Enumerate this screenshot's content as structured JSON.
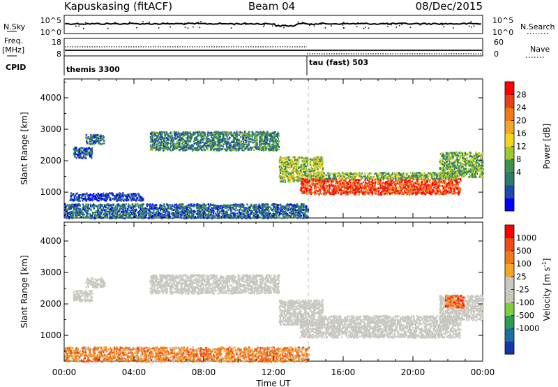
{
  "header": {
    "station": "Kapuskasing (fitACF)",
    "beam": "Beam 04",
    "date": "08/Dec/2015"
  },
  "noise_panel": {
    "left_label": "N.Sky",
    "right_label": "N.Search",
    "left_ticks": [
      "10^5",
      "10^0"
    ],
    "right_ticks": [
      "10^5",
      "10^0"
    ]
  },
  "freq_panel": {
    "left_label_1": "Freq.",
    "left_label_2": "[MHz]",
    "right_label": "Nave",
    "left_ticks": [
      "18",
      "8"
    ],
    "right_ticks": [
      "60",
      "0"
    ],
    "cpid_label": "CPID",
    "cpid_1": "themis 3300",
    "cpid_2": "tau (fast) 503"
  },
  "chart_data": [
    {
      "type": "heatmap",
      "title": "",
      "xlabel": "Time UT",
      "ylabel": "Slant Range [km]",
      "x_ticks": [
        "00:00",
        "04:00",
        "08:00",
        "12:00",
        "16:00",
        "20:00",
        "00:00"
      ],
      "xlim_hours": [
        0,
        24
      ],
      "ylim_km": [
        180,
        4600
      ],
      "y_ticks": [
        1000,
        2000,
        3000,
        4000
      ],
      "colorbar_label": "Power [dB]",
      "colorbar_ticks": [
        "28",
        "24",
        "20",
        "16",
        "12",
        "8",
        "4"
      ],
      "colorbar_colors": [
        "#0000ff",
        "#1e4aa8",
        "#2d7a6e",
        "#3f8f4e",
        "#9ec92a",
        "#f5d51c",
        "#f5a623",
        "#f07a1a",
        "#e8401a",
        "#ff0000"
      ],
      "cpid_change_hours": 14,
      "regions": [
        {
          "t": [
            4.9,
            12.3
          ],
          "r": [
            2350,
            2950
          ],
          "level": 0.28
        },
        {
          "t": [
            0.5,
            1.6
          ],
          "r": [
            2100,
            2450
          ],
          "level": 0.2
        },
        {
          "t": [
            1.2,
            2.3
          ],
          "r": [
            2550,
            2850
          ],
          "level": 0.25
        },
        {
          "t": [
            0.0,
            14.0
          ],
          "r": [
            190,
            650
          ],
          "level": 0.22
        },
        {
          "t": [
            0.3,
            4.5
          ],
          "r": [
            750,
            1000
          ],
          "level": 0.12
        },
        {
          "t": [
            12.3,
            14.8
          ],
          "r": [
            1350,
            2150
          ],
          "level": 0.45
        },
        {
          "t": [
            13.5,
            22.7
          ],
          "r": [
            950,
            1450
          ],
          "level": 0.85
        },
        {
          "t": [
            14.5,
            22.5
          ],
          "r": [
            1450,
            1650
          ],
          "level": 0.4
        },
        {
          "t": [
            21.5,
            24.0
          ],
          "r": [
            1500,
            2300
          ],
          "level": 0.38
        }
      ]
    },
    {
      "type": "heatmap",
      "title": "",
      "xlabel": "Time UT",
      "ylabel": "Slant Range [km]",
      "x_ticks": [
        "00:00",
        "04:00",
        "08:00",
        "12:00",
        "16:00",
        "20:00",
        "00:00"
      ],
      "xlim_hours": [
        0,
        24
      ],
      "ylim_km": [
        180,
        4600
      ],
      "y_ticks": [
        1000,
        2000,
        3000,
        4000
      ],
      "colorbar_label": "Velocity [m s^-1]",
      "colorbar_ticks": [
        "1000",
        "500",
        "100",
        "25",
        "-25",
        "-100",
        "-500",
        "-1000"
      ],
      "colorbar_colors": [
        "#1436a8",
        "#1e6fa0",
        "#2e9a5a",
        "#7fcf3a",
        "#c8c8c0",
        "#c8c8c0",
        "#f5a623",
        "#f07a1a",
        "#f04a1a",
        "#ff0000"
      ],
      "cpid_change_hours": 14,
      "regions": [
        {
          "t": [
            4.9,
            12.3
          ],
          "r": [
            2350,
            2950
          ],
          "level": 0.5
        },
        {
          "t": [
            0.5,
            1.6
          ],
          "r": [
            2100,
            2450
          ],
          "level": 0.5
        },
        {
          "t": [
            1.2,
            2.3
          ],
          "r": [
            2550,
            2850
          ],
          "level": 0.5
        },
        {
          "t": [
            12.3,
            14.8
          ],
          "r": [
            1350,
            2150
          ],
          "level": 0.5
        },
        {
          "t": [
            13.5,
            22.7
          ],
          "r": [
            950,
            1450
          ],
          "level": 0.5
        },
        {
          "t": [
            14.5,
            22.5
          ],
          "r": [
            1450,
            1650
          ],
          "level": 0.5
        },
        {
          "t": [
            21.5,
            24.0
          ],
          "r": [
            1500,
            2300
          ],
          "level": 0.5
        },
        {
          "t": [
            0.0,
            14.0
          ],
          "r": [
            190,
            650
          ],
          "level": 0.72
        },
        {
          "t": [
            21.8,
            22.9
          ],
          "r": [
            1900,
            2300
          ],
          "level": 0.78
        }
      ]
    }
  ]
}
